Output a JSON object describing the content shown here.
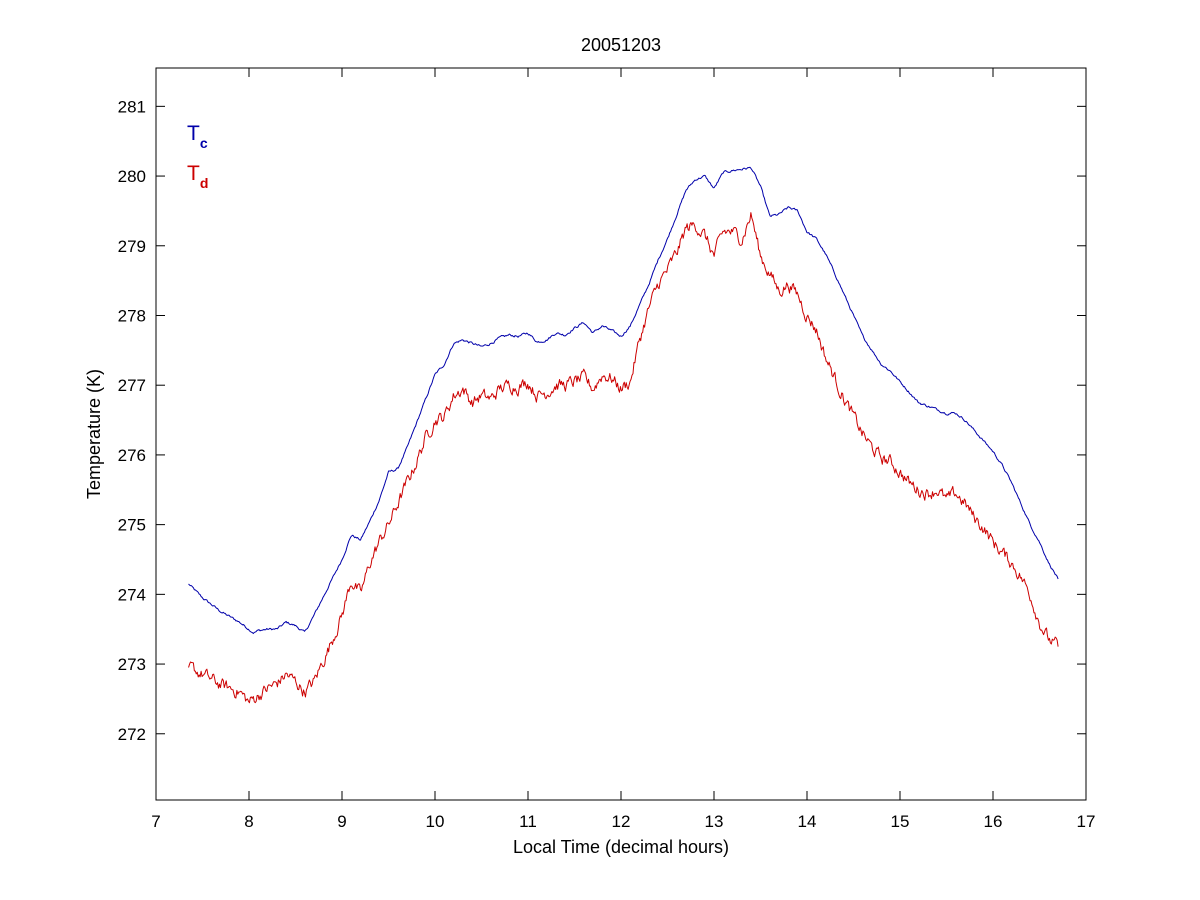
{
  "chart_data": {
    "type": "line",
    "title": "20051203",
    "xlabel": "Local Time (decimal hours)",
    "ylabel": "Temperature (K)",
    "xlim": [
      7,
      17
    ],
    "ylim": [
      271.05,
      281.55
    ],
    "xticks": [
      7,
      8,
      9,
      10,
      11,
      12,
      13,
      14,
      15,
      16,
      17
    ],
    "yticks": [
      272,
      273,
      274,
      275,
      276,
      277,
      278,
      279,
      280,
      281
    ],
    "grid": false,
    "legend_position": "top-left",
    "series": [
      {
        "legend_main": "T",
        "legend_sub": "c",
        "color": "#0000aa",
        "noise": 0.015,
        "x": [
          7.35,
          7.5,
          7.7,
          7.9,
          8.0,
          8.05,
          8.1,
          8.2,
          8.3,
          8.4,
          8.5,
          8.6,
          8.7,
          8.85,
          9.0,
          9.1,
          9.2,
          9.3,
          9.4,
          9.5,
          9.6,
          9.7,
          9.8,
          9.9,
          10.0,
          10.1,
          10.2,
          10.3,
          10.4,
          10.5,
          10.6,
          10.7,
          10.8,
          10.9,
          11.0,
          11.1,
          11.2,
          11.3,
          11.4,
          11.5,
          11.6,
          11.7,
          11.8,
          11.9,
          12.0,
          12.1,
          12.2,
          12.3,
          12.4,
          12.5,
          12.6,
          12.7,
          12.8,
          12.9,
          13.0,
          13.1,
          13.2,
          13.3,
          13.4,
          13.5,
          13.6,
          13.7,
          13.8,
          13.9,
          14.0,
          14.1,
          14.2,
          14.3,
          14.4,
          14.5,
          14.6,
          14.7,
          14.8,
          14.9,
          15.0,
          15.1,
          15.2,
          15.3,
          15.4,
          15.5,
          15.6,
          15.7,
          15.8,
          15.9,
          16.0,
          16.1,
          16.2,
          16.3,
          16.4,
          16.5,
          16.6,
          16.7
        ],
        "y": [
          274.15,
          273.95,
          273.75,
          273.6,
          273.5,
          273.45,
          273.48,
          273.5,
          273.5,
          273.6,
          273.55,
          273.45,
          273.7,
          274.1,
          274.5,
          274.85,
          274.78,
          275.05,
          275.35,
          275.75,
          275.8,
          276.1,
          276.45,
          276.8,
          277.15,
          277.3,
          277.6,
          277.65,
          277.6,
          277.55,
          277.6,
          277.68,
          277.72,
          277.7,
          277.75,
          277.62,
          277.65,
          277.75,
          277.72,
          277.82,
          277.9,
          277.75,
          277.85,
          277.78,
          277.7,
          277.85,
          278.15,
          278.45,
          278.8,
          279.1,
          279.45,
          279.8,
          279.95,
          280.0,
          279.82,
          280.05,
          280.08,
          280.1,
          280.12,
          279.85,
          279.42,
          279.45,
          279.55,
          279.5,
          279.2,
          279.1,
          278.88,
          278.6,
          278.3,
          278.0,
          277.7,
          277.5,
          277.3,
          277.2,
          277.05,
          276.9,
          276.75,
          276.7,
          276.65,
          276.6,
          276.6,
          276.5,
          276.35,
          276.2,
          276.05,
          275.85,
          275.6,
          275.3,
          275.0,
          274.75,
          274.45,
          274.22
        ]
      },
      {
        "legend_main": "T",
        "legend_sub": "d",
        "color": "#cc0000",
        "noise": 0.075,
        "x": [
          7.35,
          7.5,
          7.7,
          7.9,
          8.0,
          8.1,
          8.2,
          8.3,
          8.4,
          8.5,
          8.6,
          8.7,
          8.85,
          9.0,
          9.1,
          9.2,
          9.3,
          9.4,
          9.5,
          9.6,
          9.7,
          9.8,
          9.9,
          10.0,
          10.1,
          10.2,
          10.3,
          10.4,
          10.5,
          10.6,
          10.7,
          10.8,
          10.9,
          11.0,
          11.1,
          11.2,
          11.3,
          11.4,
          11.5,
          11.6,
          11.7,
          11.8,
          11.9,
          12.0,
          12.1,
          12.2,
          12.3,
          12.4,
          12.5,
          12.6,
          12.7,
          12.8,
          12.9,
          13.0,
          13.1,
          13.2,
          13.3,
          13.4,
          13.5,
          13.6,
          13.7,
          13.8,
          13.9,
          14.0,
          14.1,
          14.2,
          14.3,
          14.4,
          14.5,
          14.6,
          14.7,
          14.8,
          14.9,
          15.0,
          15.1,
          15.2,
          15.3,
          15.4,
          15.5,
          15.6,
          15.7,
          15.8,
          15.9,
          16.0,
          16.1,
          16.2,
          16.3,
          16.4,
          16.5,
          16.6,
          16.7
        ],
        "y": [
          272.95,
          272.85,
          272.7,
          272.6,
          272.45,
          272.55,
          272.65,
          272.72,
          272.85,
          272.75,
          272.6,
          272.75,
          273.2,
          273.7,
          274.2,
          274.0,
          274.45,
          274.75,
          275.0,
          275.3,
          275.6,
          275.9,
          276.25,
          276.5,
          276.55,
          276.85,
          276.95,
          276.75,
          276.85,
          276.8,
          276.95,
          277.0,
          276.98,
          277.05,
          276.85,
          276.9,
          277.0,
          277.0,
          277.05,
          277.1,
          276.95,
          277.15,
          277.1,
          276.95,
          277.05,
          277.65,
          278.1,
          278.45,
          278.65,
          278.9,
          279.25,
          279.3,
          279.15,
          278.85,
          279.2,
          279.2,
          279.1,
          279.45,
          278.85,
          278.6,
          278.35,
          278.45,
          278.3,
          278.0,
          277.8,
          277.4,
          277.1,
          276.8,
          276.55,
          276.3,
          276.1,
          275.95,
          275.9,
          275.75,
          275.6,
          275.5,
          275.45,
          275.5,
          275.35,
          275.45,
          275.3,
          275.1,
          274.95,
          274.75,
          274.6,
          274.45,
          274.25,
          274.0,
          273.6,
          273.35,
          273.25
        ]
      }
    ]
  }
}
